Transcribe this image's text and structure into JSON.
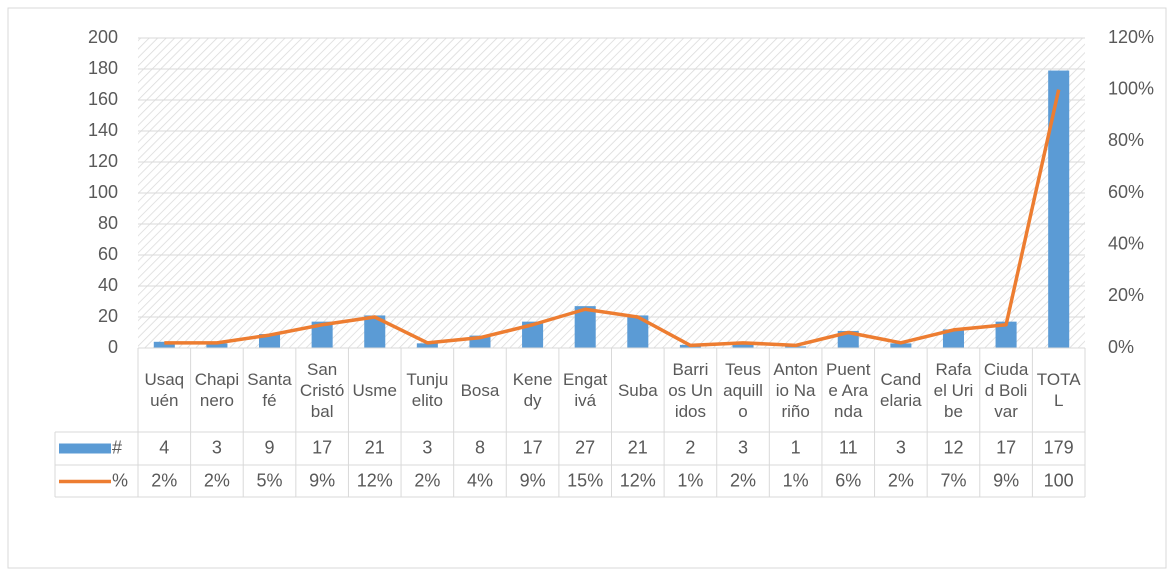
{
  "chart_data": {
    "type": "bar",
    "categories": [
      "Usaquén",
      "Chapinero",
      "Santafé",
      "San Cristóbal",
      "Usme",
      "Tunjuelito",
      "Bosa",
      "Kenedy",
      "Engativá",
      "Suba",
      "Barrios Unidos",
      "Teusaquillo",
      "Antonio Nariño",
      "Puente Aranda",
      "Candelaria",
      "Rafael Uribe",
      "Ciudad Bolivar",
      "TOTAL"
    ],
    "series": [
      {
        "name": "#",
        "type": "bar",
        "color": "#5b9bd5",
        "values": [
          4,
          3,
          9,
          17,
          21,
          3,
          8,
          17,
          27,
          21,
          2,
          3,
          1,
          11,
          3,
          12,
          17,
          179
        ]
      },
      {
        "name": "%",
        "type": "line",
        "axis": "y2",
        "color": "#ed7d31",
        "values": [
          2,
          2,
          5,
          9,
          12,
          2,
          4,
          9,
          15,
          12,
          1,
          2,
          1,
          6,
          2,
          7,
          9,
          100
        ],
        "value_labels": [
          "2%",
          "2%",
          "5%",
          "9%",
          "12%",
          "2%",
          "4%",
          "9%",
          "15%",
          "12%",
          "1%",
          "2%",
          "1%",
          "6%",
          "2%",
          "7%",
          "9%",
          "100"
        ]
      }
    ],
    "ylim": [
      0,
      200
    ],
    "yticks": [
      0,
      20,
      40,
      60,
      80,
      100,
      120,
      140,
      160,
      180,
      200
    ],
    "y2lim": [
      0,
      120
    ],
    "y2ticks": [
      {
        "value": 0,
        "label": "0%"
      },
      {
        "value": 20,
        "label": "20%"
      },
      {
        "value": 40,
        "label": "40%"
      },
      {
        "value": 60,
        "label": "60%"
      },
      {
        "value": 80,
        "label": "80%"
      },
      {
        "value": 100,
        "label": "100%"
      },
      {
        "value": 120,
        "label": "120%"
      }
    ],
    "grid": true,
    "data_table": true
  }
}
